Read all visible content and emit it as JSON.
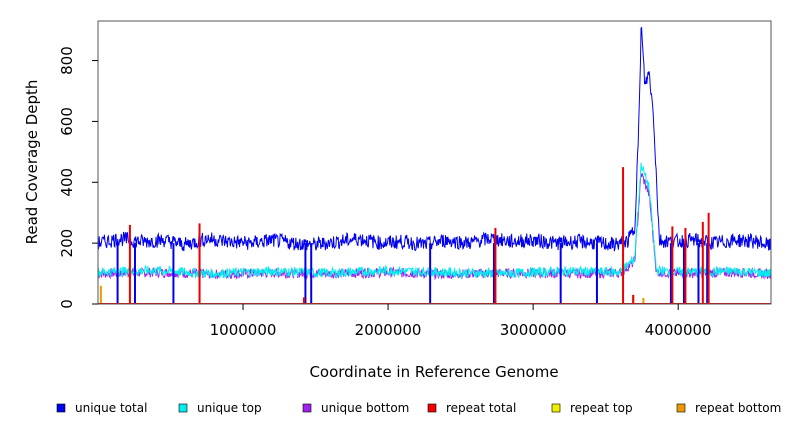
{
  "chart_data": {
    "type": "line",
    "title": "",
    "xlabel": "Coordinate in Reference Genome",
    "ylabel": "Read Coverage Depth",
    "xlim": [
      0,
      4640000
    ],
    "ylim": [
      0,
      930
    ],
    "x_ticks": [
      1000000,
      2000000,
      3000000,
      4000000
    ],
    "x_tick_labels": [
      "1000000",
      "2000000",
      "3000000",
      "4000000"
    ],
    "y_ticks": [
      0,
      200,
      400,
      600,
      800
    ],
    "y_tick_labels": [
      "0",
      "200",
      "400",
      "600",
      "800"
    ],
    "legend_position": "bottom",
    "series": [
      {
        "name": "unique total",
        "color": "#0000ee",
        "x": [
          0,
          150000,
          300000,
          450000,
          600000,
          750000,
          900000,
          1050000,
          1200000,
          1350000,
          1500000,
          1650000,
          1800000,
          1950000,
          2100000,
          2250000,
          2400000,
          2550000,
          2700000,
          2850000,
          3000000,
          3150000,
          3300000,
          3450000,
          3550000,
          3650000,
          3700000,
          3730000,
          3745000,
          3770000,
          3800000,
          3830000,
          3870000,
          3950000,
          4100000,
          4250000,
          4400000,
          4550000,
          4640000
        ],
        "values": [
          200,
          215,
          205,
          210,
          195,
          215,
          205,
          200,
          210,
          200,
          195,
          205,
          215,
          200,
          205,
          195,
          210,
          200,
          215,
          205,
          210,
          200,
          205,
          200,
          195,
          205,
          250,
          600,
          920,
          720,
          760,
          620,
          210,
          205,
          210,
          200,
          210,
          205,
          190
        ],
        "dips": [
          135000,
          255000,
          520000,
          700000,
          1430000,
          1470000,
          2290000,
          2730000,
          3190000,
          3440000,
          3950000,
          4040000,
          4140000,
          4200000
        ]
      },
      {
        "name": "unique top",
        "color": "#00eeee",
        "x": [
          0,
          400000,
          800000,
          1200000,
          1600000,
          2000000,
          2400000,
          2800000,
          3200000,
          3600000,
          3700000,
          3745000,
          3800000,
          3850000,
          4000000,
          4400000,
          4640000
        ],
        "values": [
          105,
          110,
          100,
          108,
          102,
          110,
          104,
          100,
          108,
          105,
          150,
          460,
          380,
          110,
          105,
          108,
          100
        ]
      },
      {
        "name": "unique bottom",
        "color": "#a020f0",
        "x": [
          0,
          400000,
          800000,
          1200000,
          1600000,
          2000000,
          2400000,
          2800000,
          3200000,
          3600000,
          3700000,
          3745000,
          3800000,
          3850000,
          4000000,
          4400000,
          4640000
        ],
        "values": [
          100,
          104,
          98,
          102,
          100,
          104,
          98,
          102,
          100,
          102,
          140,
          430,
          360,
          105,
          100,
          104,
          98
        ]
      },
      {
        "name": "repeat total",
        "color": "#ee0000",
        "x": [
          220000,
          700000,
          1420000,
          2740000,
          3620000,
          3690000,
          3960000,
          4050000,
          4170000,
          4210000
        ],
        "values": [
          260,
          265,
          22,
          250,
          450,
          30,
          255,
          250,
          270,
          300
        ]
      },
      {
        "name": "repeat top",
        "color": "#eeee00",
        "x": [
          220000,
          700000,
          2740000,
          3620000
        ],
        "values": [
          10,
          10,
          10,
          15
        ]
      },
      {
        "name": "repeat bottom",
        "color": "#ee9a00",
        "x": [
          0,
          20000,
          220000,
          700000,
          1420000,
          2740000,
          3620000,
          3690000,
          3760000,
          4640000
        ],
        "values": [
          0,
          60,
          5,
          5,
          20,
          5,
          8,
          30,
          20,
          0
        ]
      }
    ]
  }
}
